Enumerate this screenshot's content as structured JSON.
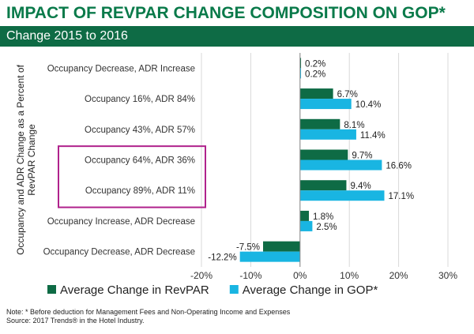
{
  "header": {
    "title": "IMPACT OF REVPAR CHANGE COMPOSITION ON GOP*",
    "subtitle": "Change 2015 to 2016"
  },
  "chart_data": {
    "type": "bar",
    "orientation": "horizontal",
    "categories": [
      "Occupancy Decrease, ADR Increase",
      "Occupancy 16%, ADR 84%",
      "Occupancy 43%, ADR 57%",
      "Occupancy 64%, ADR 36%",
      "Occupancy 89%, ADR 11%",
      "Occupancy Increase, ADR Decrease",
      "Occupancy Decrease, ADR Decrease"
    ],
    "series": [
      {
        "name": "Average Change in RevPAR",
        "values": [
          0.2,
          6.7,
          8.1,
          9.7,
          9.4,
          1.8,
          -7.5
        ],
        "labels": [
          "0.2%",
          "6.7%",
          "8.1%",
          "9.7%",
          "9.4%",
          "1.8%",
          "-7.5%"
        ],
        "color": "#0e6b45"
      },
      {
        "name": "Average Change in GOP*",
        "values": [
          0.2,
          10.4,
          11.4,
          16.6,
          17.1,
          2.5,
          -12.2
        ],
        "labels": [
          "0.2%",
          "10.4%",
          "11.4%",
          "16.6%",
          "17.1%",
          "2.5%",
          "-12.2%"
        ],
        "color": "#19b5e2"
      }
    ],
    "xlim": [
      -20,
      30
    ],
    "xticks": [
      -20,
      -10,
      0,
      10,
      20,
      30
    ],
    "xtick_labels": [
      "-20%",
      "-10%",
      "0%",
      "10%",
      "20%",
      "30%"
    ],
    "ylabel": "Occupancy and ADR Change as a Percent of RevPAR Change",
    "highlight_categories": [
      "Occupancy 64%, ADR 36%",
      "Occupancy 89%, ADR 11%"
    ],
    "highlight_color": "#b0228c",
    "grid": true,
    "legend_position": "bottom"
  },
  "footnote": {
    "line1": "Note: * Before deduction for Management Fees and Non-Operating Income and Expenses",
    "line2": "Source: 2017 Trends® in the Hotel Industry."
  }
}
